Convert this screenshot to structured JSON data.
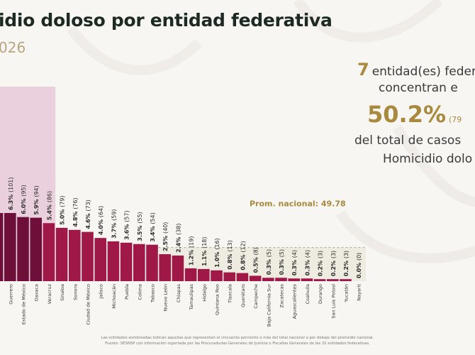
{
  "header": {
    "title": "idio doloso por entidad federativa",
    "subtitle": "026"
  },
  "summary": {
    "count": "7",
    "line1": "entidad(es) federa",
    "line2": "concentran e",
    "percent": "50.2%",
    "percent_paren": "(79",
    "line4": "del total de casos",
    "line5": "Homicidio dolo"
  },
  "footnote": {
    "line1": "Las entidades sombreadas indican aquellas que representan el cincuenta porciento o más del total nacional o por debajo del promedio nacional.",
    "line2": "Fuente: SESNSP con información reportada por las Procuradurías Generales de Justicia o Fiscalías Generales de las 32 entidades federativas."
  },
  "colors": {
    "top_bar": "#6e0f3a",
    "mid_bar": "#a01848",
    "top_region": "#ead0dc",
    "low_region": "#eeece0",
    "accent_gold": "#a8893d"
  },
  "chart_data": {
    "type": "bar",
    "title": "Homicidio doloso por entidad federativa",
    "average_label": "Prom. nacional: 49.78",
    "average": 49.78,
    "top_group_count": 7,
    "categories": [
      "",
      "Guerrero",
      "Estado de México",
      "Oaxaca",
      "Veracruz",
      "Sinaloa",
      "Sonora",
      "Ciudad de México",
      "Jalisco",
      "Michoacán",
      "Puebla",
      "Colima",
      "Tabasco",
      "Nuevo León",
      "Chiapas",
      "Tamaulipas",
      "Hidalgo",
      "Quintana Roo",
      "Tlaxcala",
      "Querétaro",
      "Campeche",
      "Baja California Sur",
      "Zacatecas",
      "Aguascalientes",
      "Coahuila",
      "Durango",
      "San Luis Potosí",
      "Yucatán",
      "Nayarit"
    ],
    "values": [
      101,
      101,
      95,
      94,
      86,
      79,
      76,
      73,
      64,
      59,
      57,
      55,
      54,
      40,
      38,
      19,
      18,
      16,
      13,
      12,
      8,
      5,
      5,
      4,
      4,
      3,
      3,
      3,
      0
    ],
    "labels": [
      "",
      "6.3% (101)",
      "6.0% (95)",
      "5.9% (94)",
      "5.4% (86)",
      "5.0% (79)",
      "4.8% (76)",
      "4.6% (73)",
      "4.0% (64)",
      "3.7% (59)",
      "3.6% (57)",
      "3.5% (55)",
      "3.4% (54)",
      "2.5% (40)",
      "2.4% (38)",
      "1.2% (19)",
      "1.1% (18)",
      "1.0% (16)",
      "0.8% (13)",
      "0.8% (12)",
      "0.5% (8)",
      "0.3% (5)",
      "0.3% (5)",
      "0.3% (4)",
      "0.3% (4)",
      "0.2% (3)",
      "0.2% (3)",
      "0.2% (3)",
      "0.0% (0)"
    ],
    "xlabel": "",
    "ylabel": "",
    "ylim": [
      0,
      101
    ],
    "grid": false
  }
}
